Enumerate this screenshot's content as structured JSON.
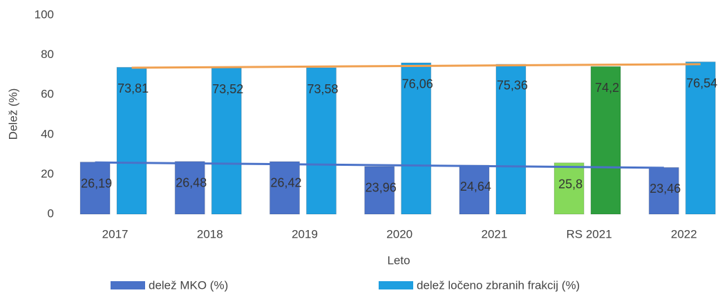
{
  "chart_data": {
    "type": "bar",
    "x_label": "Leto",
    "y_label": "Delež (%)",
    "categories": [
      "2017",
      "2018",
      "2019",
      "2020",
      "2021",
      "RS 2021",
      "2022"
    ],
    "series": [
      {
        "name": "delež MKO (%)",
        "color": "#4a72c8",
        "colors": [
          "#4a72c8",
          "#4a72c8",
          "#4a72c8",
          "#4a72c8",
          "#4a72c8",
          "#86d95a",
          "#4a72c8"
        ],
        "values": [
          26.19,
          26.48,
          26.42,
          23.96,
          24.64,
          25.8,
          23.46
        ],
        "value_labels": [
          "26,19",
          "26,48",
          "26,42",
          "23,96",
          "24,64",
          "25,8",
          "23,46"
        ],
        "trendline": {
          "color": "#4a72c8",
          "values": [
            26.0,
            23.3
          ]
        }
      },
      {
        "name": "delež ločeno zbranih frakcij (%)",
        "color": "#1e9fe0",
        "colors": [
          "#1e9fe0",
          "#1e9fe0",
          "#1e9fe0",
          "#1e9fe0",
          "#1e9fe0",
          "#2e9e3e",
          "#1e9fe0"
        ],
        "values": [
          73.81,
          73.52,
          73.58,
          76.06,
          75.36,
          74.2,
          76.54
        ],
        "value_labels": [
          "73,81",
          "73,52",
          "73,58",
          "76,06",
          "75,36",
          "74,2",
          "76,54"
        ],
        "trendline": {
          "color": "#f0a050",
          "values": [
            73.6,
            75.4
          ]
        }
      }
    ],
    "ylim": [
      0,
      100
    ],
    "yticks": [
      0,
      20,
      40,
      60,
      80,
      100
    ],
    "grid": false,
    "legend": "bottom"
  }
}
